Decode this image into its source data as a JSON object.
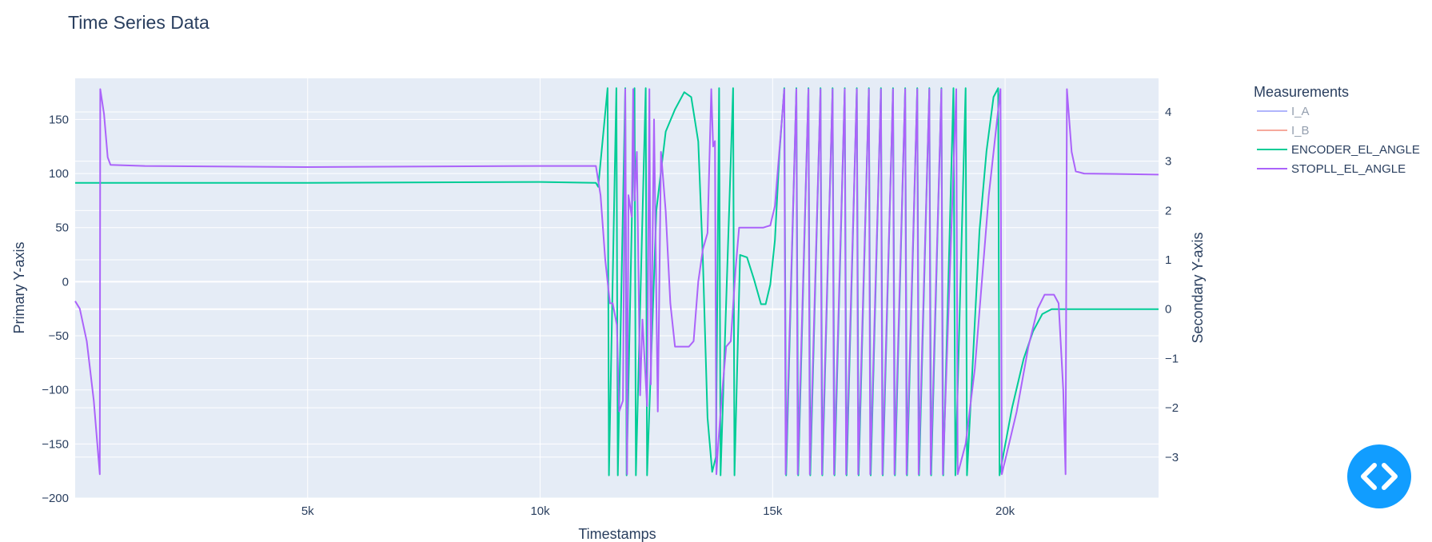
{
  "chart_data": {
    "type": "line",
    "title": "Time Series Data",
    "xlabel": "Timestamps",
    "ylabel": "Primary Y-axis",
    "y2label": "Secondary Y-axis",
    "xlim": [
      0,
      23300
    ],
    "ylim": [
      -200,
      188
    ],
    "y2lim": [
      -3.83,
      4.68
    ],
    "x_ticks": [
      {
        "v": 5000,
        "label": "5k"
      },
      {
        "v": 10000,
        "label": "10k"
      },
      {
        "v": 15000,
        "label": "15k"
      },
      {
        "v": 20000,
        "label": "20k"
      }
    ],
    "y_ticks": [
      {
        "v": 150,
        "label": "150"
      },
      {
        "v": 100,
        "label": "100"
      },
      {
        "v": 50,
        "label": "50"
      },
      {
        "v": 0,
        "label": "0"
      },
      {
        "v": -50,
        "label": "−50"
      },
      {
        "v": -100,
        "label": "−100"
      },
      {
        "v": -150,
        "label": "−150"
      },
      {
        "v": -200,
        "label": "−200"
      }
    ],
    "y2_ticks": [
      {
        "v": 4,
        "label": "4"
      },
      {
        "v": 3,
        "label": "3"
      },
      {
        "v": 2,
        "label": "2"
      },
      {
        "v": 1,
        "label": "1"
      },
      {
        "v": 0,
        "label": "0"
      },
      {
        "v": -1,
        "label": "−1"
      },
      {
        "v": -2,
        "label": "−2"
      },
      {
        "v": -3,
        "label": "−3"
      }
    ],
    "grid": true,
    "legend": {
      "title": "Measurements",
      "placement": "right"
    },
    "series": [
      {
        "name": "I_A",
        "color": "#636efa",
        "visible": false,
        "axis": "y",
        "points": []
      },
      {
        "name": "I_B",
        "color": "#ef553b",
        "visible": false,
        "axis": "y",
        "points": []
      },
      {
        "name": "ENCODER_EL_ANGLE",
        "color": "#00cc96",
        "visible": true,
        "axis": "y2",
        "points": [
          [
            0,
            2.56
          ],
          [
            5000,
            2.56
          ],
          [
            10000,
            2.58
          ],
          [
            11200,
            2.56
          ],
          [
            11250,
            2.48
          ],
          [
            11450,
            4.48
          ],
          [
            11480,
            -3.37
          ],
          [
            11640,
            4.48
          ],
          [
            11670,
            -3.37
          ],
          [
            11830,
            4.48
          ],
          [
            11860,
            -3.37
          ],
          [
            12030,
            4.48
          ],
          [
            12060,
            -3.37
          ],
          [
            12270,
            4.48
          ],
          [
            12300,
            -3.37
          ],
          [
            12500,
            2.0
          ],
          [
            12700,
            3.6
          ],
          [
            12900,
            4.05
          ],
          [
            13100,
            4.4
          ],
          [
            13250,
            4.3
          ],
          [
            13400,
            3.4
          ],
          [
            13500,
            1.0
          ],
          [
            13600,
            -2.2
          ],
          [
            13700,
            -3.3
          ],
          [
            13780,
            -3.0
          ],
          [
            13850,
            4.48
          ],
          [
            13880,
            -3.37
          ],
          [
            14150,
            4.48
          ],
          [
            14180,
            -3.37
          ],
          [
            14300,
            1.1
          ],
          [
            14450,
            1.05
          ],
          [
            14600,
            0.6
          ],
          [
            14750,
            0.1
          ],
          [
            14850,
            0.1
          ],
          [
            14950,
            0.5
          ],
          [
            15050,
            1.4
          ],
          [
            15150,
            3.2
          ],
          [
            15250,
            4.48
          ],
          [
            15290,
            -3.37
          ],
          [
            15510,
            4.48
          ],
          [
            15550,
            -3.37
          ],
          [
            15770,
            4.48
          ],
          [
            15810,
            -3.37
          ],
          [
            16030,
            4.48
          ],
          [
            16070,
            -3.37
          ],
          [
            16290,
            4.48
          ],
          [
            16330,
            -3.37
          ],
          [
            16550,
            4.48
          ],
          [
            16590,
            -3.37
          ],
          [
            16810,
            4.48
          ],
          [
            16850,
            -3.37
          ],
          [
            17070,
            4.48
          ],
          [
            17110,
            -3.37
          ],
          [
            17330,
            4.48
          ],
          [
            17370,
            -3.37
          ],
          [
            17590,
            4.48
          ],
          [
            17630,
            -3.37
          ],
          [
            17850,
            4.48
          ],
          [
            17890,
            -3.37
          ],
          [
            18110,
            4.48
          ],
          [
            18150,
            -3.37
          ],
          [
            18370,
            4.48
          ],
          [
            18410,
            -3.37
          ],
          [
            18630,
            4.48
          ],
          [
            18670,
            -3.37
          ],
          [
            18890,
            4.48
          ],
          [
            18930,
            -3.37
          ],
          [
            19150,
            4.48
          ],
          [
            19180,
            -3.37
          ],
          [
            19450,
            1.6
          ],
          [
            19600,
            3.2
          ],
          [
            19750,
            4.3
          ],
          [
            19850,
            4.48
          ],
          [
            19880,
            -3.37
          ],
          [
            20150,
            -2.0
          ],
          [
            20400,
            -1.0
          ],
          [
            20600,
            -0.45
          ],
          [
            20800,
            -0.1
          ],
          [
            21000,
            0.0
          ],
          [
            23300,
            0.0
          ]
        ]
      },
      {
        "name": "STOPLL_EL_ANGLE",
        "color": "#ab63fa",
        "visible": true,
        "axis": "y",
        "points": [
          [
            0,
            -18
          ],
          [
            100,
            -25
          ],
          [
            250,
            -55
          ],
          [
            400,
            -110
          ],
          [
            530,
            -178
          ],
          [
            540,
            178
          ],
          [
            620,
            155
          ],
          [
            700,
            115
          ],
          [
            760,
            108
          ],
          [
            1500,
            107
          ],
          [
            5000,
            106
          ],
          [
            10000,
            107
          ],
          [
            10800,
            107
          ],
          [
            11200,
            107
          ],
          [
            11300,
            80
          ],
          [
            11400,
            20
          ],
          [
            11500,
            -20
          ],
          [
            11560,
            -20
          ],
          [
            11650,
            -40
          ],
          [
            11700,
            -120
          ],
          [
            11780,
            -110
          ],
          [
            11830,
            178
          ],
          [
            11870,
            -178
          ],
          [
            11900,
            80
          ],
          [
            11970,
            60
          ],
          [
            12000,
            178
          ],
          [
            12030,
            75
          ],
          [
            12080,
            120
          ],
          [
            12150,
            -105
          ],
          [
            12200,
            -35
          ],
          [
            12300,
            -115
          ],
          [
            12350,
            178
          ],
          [
            12380,
            -95
          ],
          [
            12450,
            150
          ],
          [
            12530,
            -120
          ],
          [
            12600,
            120
          ],
          [
            12700,
            65
          ],
          [
            12800,
            -20
          ],
          [
            12900,
            -60
          ],
          [
            13000,
            -60
          ],
          [
            13200,
            -60
          ],
          [
            13300,
            -55
          ],
          [
            13400,
            0
          ],
          [
            13500,
            30
          ],
          [
            13600,
            45
          ],
          [
            13680,
            178
          ],
          [
            13720,
            125
          ],
          [
            13760,
            130
          ],
          [
            13790,
            -178
          ],
          [
            13830,
            -150
          ],
          [
            13900,
            -110
          ],
          [
            14000,
            -60
          ],
          [
            14100,
            -55
          ],
          [
            14200,
            10
          ],
          [
            14280,
            50
          ],
          [
            14350,
            50
          ],
          [
            14800,
            50
          ],
          [
            14950,
            52
          ],
          [
            15050,
            70
          ],
          [
            15200,
            150
          ],
          [
            15250,
            178
          ],
          [
            15280,
            -178
          ],
          [
            15510,
            178
          ],
          [
            15540,
            -178
          ],
          [
            15770,
            178
          ],
          [
            15800,
            -178
          ],
          [
            16030,
            178
          ],
          [
            16060,
            -178
          ],
          [
            16290,
            178
          ],
          [
            16320,
            -178
          ],
          [
            16550,
            178
          ],
          [
            16580,
            -178
          ],
          [
            16810,
            178
          ],
          [
            16840,
            -178
          ],
          [
            17070,
            178
          ],
          [
            17100,
            -178
          ],
          [
            17330,
            178
          ],
          [
            17360,
            -178
          ],
          [
            17590,
            178
          ],
          [
            17620,
            -178
          ],
          [
            17850,
            178
          ],
          [
            17880,
            -178
          ],
          [
            18110,
            178
          ],
          [
            18140,
            -178
          ],
          [
            18370,
            178
          ],
          [
            18400,
            -178
          ],
          [
            18630,
            178
          ],
          [
            18660,
            -178
          ],
          [
            18950,
            178
          ],
          [
            18980,
            -178
          ],
          [
            19150,
            -150
          ],
          [
            19350,
            -80
          ],
          [
            19650,
            80
          ],
          [
            19900,
            178
          ],
          [
            19930,
            -178
          ],
          [
            20250,
            -120
          ],
          [
            20500,
            -60
          ],
          [
            20700,
            -25
          ],
          [
            20850,
            -12
          ],
          [
            21050,
            -12
          ],
          [
            21150,
            -20
          ],
          [
            21250,
            -100
          ],
          [
            21300,
            -178
          ],
          [
            21330,
            178
          ],
          [
            21430,
            120
          ],
          [
            21520,
            102
          ],
          [
            21700,
            100
          ],
          [
            23300,
            99
          ]
        ]
      }
    ]
  }
}
